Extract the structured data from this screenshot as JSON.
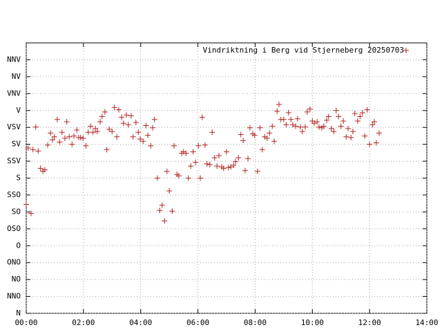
{
  "chart_data": {
    "type": "scatter",
    "grid": true,
    "legend": "top-right",
    "xlim": [
      0,
      840
    ],
    "xticks": [
      {
        "value": 0,
        "label": "00:00"
      },
      {
        "value": 120,
        "label": "02:00"
      },
      {
        "value": 240,
        "label": "04:00"
      },
      {
        "value": 360,
        "label": "06:00"
      },
      {
        "value": 480,
        "label": "08:00"
      },
      {
        "value": 600,
        "label": "10:00"
      },
      {
        "value": 720,
        "label": "12:00"
      },
      {
        "value": 840,
        "label": "14:00"
      }
    ],
    "ylim": [
      0,
      360
    ],
    "yticks": [
      {
        "value": 0,
        "label": "N"
      },
      {
        "value": 22.5,
        "label": "NNO"
      },
      {
        "value": 45,
        "label": "NO"
      },
      {
        "value": 67.5,
        "label": "ONO"
      },
      {
        "value": 90,
        "label": "O"
      },
      {
        "value": 112.5,
        "label": "OSO"
      },
      {
        "value": 135,
        "label": "SO"
      },
      {
        "value": 157.5,
        "label": "SSO"
      },
      {
        "value": 180,
        "label": "S"
      },
      {
        "value": 202.5,
        "label": "SSV"
      },
      {
        "value": 225,
        "label": "SV"
      },
      {
        "value": 247.5,
        "label": "VSV"
      },
      {
        "value": 270,
        "label": "V"
      },
      {
        "value": 292.5,
        "label": "VNV"
      },
      {
        "value": 315,
        "label": "NV"
      },
      {
        "value": 337.5,
        "label": "NNV"
      }
    ],
    "series": [
      {
        "name": "Vindriktning i Berg vid Stjerneberg 20250703",
        "color": "#b22222",
        "x": [
          0,
          4,
          10,
          14,
          20,
          25,
          30,
          35,
          39,
          45,
          51,
          55,
          59,
          65,
          70,
          75,
          81,
          85,
          90,
          96,
          100,
          106,
          110,
          114,
          119,
          125,
          130,
          135,
          140,
          145,
          149,
          155,
          159,
          165,
          169,
          174,
          180,
          185,
          190,
          194,
          200,
          204,
          210,
          214,
          220,
          224,
          230,
          235,
          239,
          245,
          251,
          255,
          261,
          265,
          269,
          275,
          280,
          285,
          290,
          295,
          300,
          306,
          310,
          316,
          320,
          326,
          330,
          335,
          340,
          345,
          350,
          355,
          361,
          365,
          369,
          375,
          379,
          385,
          390,
          395,
          400,
          404,
          410,
          414,
          420,
          424,
          429,
          435,
          439,
          445,
          450,
          455,
          459,
          465,
          469,
          475,
          479,
          485,
          490,
          495,
          500,
          505,
          510,
          516,
          520,
          526,
          530,
          534,
          540,
          545,
          550,
          555,
          559,
          565,
          569,
          575,
          579,
          585,
          589,
          595,
          600,
          604,
          610,
          614,
          620,
          624,
          630,
          634,
          640,
          645,
          650,
          655,
          660,
          665,
          671,
          675,
          681,
          685,
          689,
          695,
          700,
          705,
          710,
          715,
          720,
          726,
          730,
          734,
          740
        ],
        "values": [
          145,
          220,
          133,
          218,
          248,
          216,
          193,
          189,
          191,
          224,
          240,
          231,
          235,
          258,
          228,
          241,
          233,
          255,
          235,
          225,
          236,
          244,
          234,
          234,
          233,
          223,
          241,
          249,
          241,
          246,
          242,
          255,
          262,
          268,
          218,
          245,
          242,
          274,
          235,
          271,
          261,
          253,
          264,
          251,
          263,
          235,
          254,
          241,
          232,
          229,
          250,
          237,
          223,
          247,
          258,
          180,
          137,
          144,
          123,
          189,
          163,
          136,
          223,
          185,
          183,
          213,
          215,
          213,
          180,
          196,
          215,
          201,
          223,
          180,
          261,
          224,
          199,
          198,
          241,
          207,
          196,
          210,
          195,
          193,
          215,
          194,
          195,
          197,
          202,
          207,
          238,
          230,
          190,
          206,
          247,
          239,
          237,
          189,
          247,
          218,
          235,
          233,
          240,
          249,
          229,
          269,
          278,
          258,
          258,
          251,
          267,
          258,
          251,
          249,
          259,
          248,
          242,
          248,
          268,
          272,
          256,
          253,
          255,
          248,
          247,
          249,
          257,
          262,
          246,
          242,
          270,
          262,
          249,
          256,
          235,
          246,
          234,
          242,
          266,
          256,
          262,
          267,
          236,
          271,
          225,
          251,
          255,
          227,
          240
        ]
      }
    ]
  }
}
